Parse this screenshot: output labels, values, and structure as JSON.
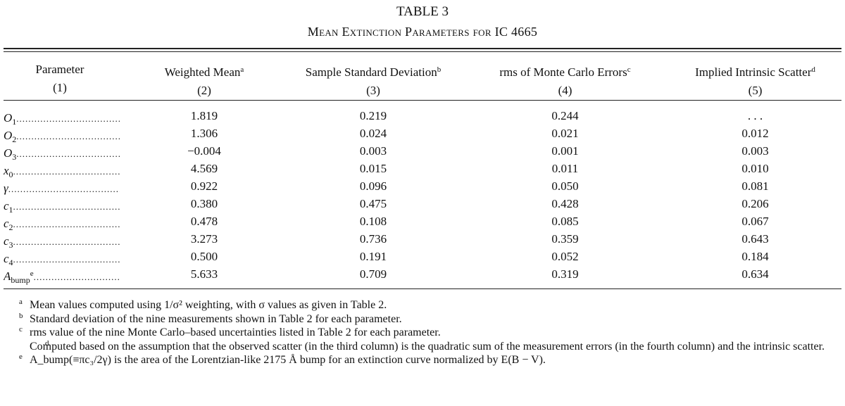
{
  "table": {
    "title": "TABLE 3",
    "subtitle": "Mean Extinction Parameters for IC 4665",
    "headers": [
      {
        "label": "Parameter",
        "note": "",
        "num": "(1)"
      },
      {
        "label": "Weighted Mean",
        "note": "a",
        "num": "(2)"
      },
      {
        "label": "Sample Standard Deviation",
        "note": "b",
        "num": "(3)"
      },
      {
        "label": "rms of Monte Carlo Errors",
        "note": "c",
        "num": "(4)"
      },
      {
        "label": "Implied Intrinsic Scatter",
        "note": "d",
        "num": "(5)"
      }
    ],
    "rows": [
      {
        "sym": "O",
        "sub": "1",
        "sup": "",
        "mean": "1.819",
        "sd": "0.219",
        "rms": "0.244",
        "scatter": ". . ."
      },
      {
        "sym": "O",
        "sub": "2",
        "sup": "",
        "mean": "1.306",
        "sd": "0.024",
        "rms": "0.021",
        "scatter": "0.012"
      },
      {
        "sym": "O",
        "sub": "3",
        "sup": "",
        "mean": "−0.004",
        "sd": "0.003",
        "rms": "0.001",
        "scatter": "0.003"
      },
      {
        "sym": "x",
        "sub": "0",
        "sup": "",
        "mean": "4.569",
        "sd": "0.015",
        "rms": "0.011",
        "scatter": "0.010"
      },
      {
        "sym": "γ",
        "sub": "",
        "sup": "",
        "mean": "0.922",
        "sd": "0.096",
        "rms": "0.050",
        "scatter": "0.081"
      },
      {
        "sym": "c",
        "sub": "1",
        "sup": "",
        "mean": "0.380",
        "sd": "0.475",
        "rms": "0.428",
        "scatter": "0.206"
      },
      {
        "sym": "c",
        "sub": "2",
        "sup": "",
        "mean": "0.478",
        "sd": "0.108",
        "rms": "0.085",
        "scatter": "0.067"
      },
      {
        "sym": "c",
        "sub": "3",
        "sup": "",
        "mean": "3.273",
        "sd": "0.736",
        "rms": "0.359",
        "scatter": "0.643"
      },
      {
        "sym": "c",
        "sub": "4",
        "sup": "",
        "mean": "0.500",
        "sd": "0.191",
        "rms": "0.052",
        "scatter": "0.184"
      },
      {
        "sym": "A",
        "sub": "bump",
        "sup": "e",
        "mean": "5.633",
        "sd": "0.709",
        "rms": "0.319",
        "scatter": "0.634"
      }
    ],
    "dots": "...............................................",
    "footnotes": [
      {
        "mark": "a",
        "text": "Mean values computed using 1/σ² weighting, with σ values as given in Table 2."
      },
      {
        "mark": "b",
        "text": "Standard deviation of the nine measurements shown in Table 2 for each parameter."
      },
      {
        "mark": "c",
        "text": "rms value of the nine Monte Carlo–based uncertainties listed in Table 2 for each parameter."
      },
      {
        "mark": "d",
        "text": "Computed based on the assumption that the observed scatter (in the third column) is the quadratic sum of the measurement errors (in the fourth column) and the intrinsic scatter."
      },
      {
        "mark": "e",
        "text": "A_bump(≡πc₃/2γ) is the area of the Lorentzian-like 2175 Å bump for an extinction curve normalized by E(B − V)."
      }
    ]
  }
}
